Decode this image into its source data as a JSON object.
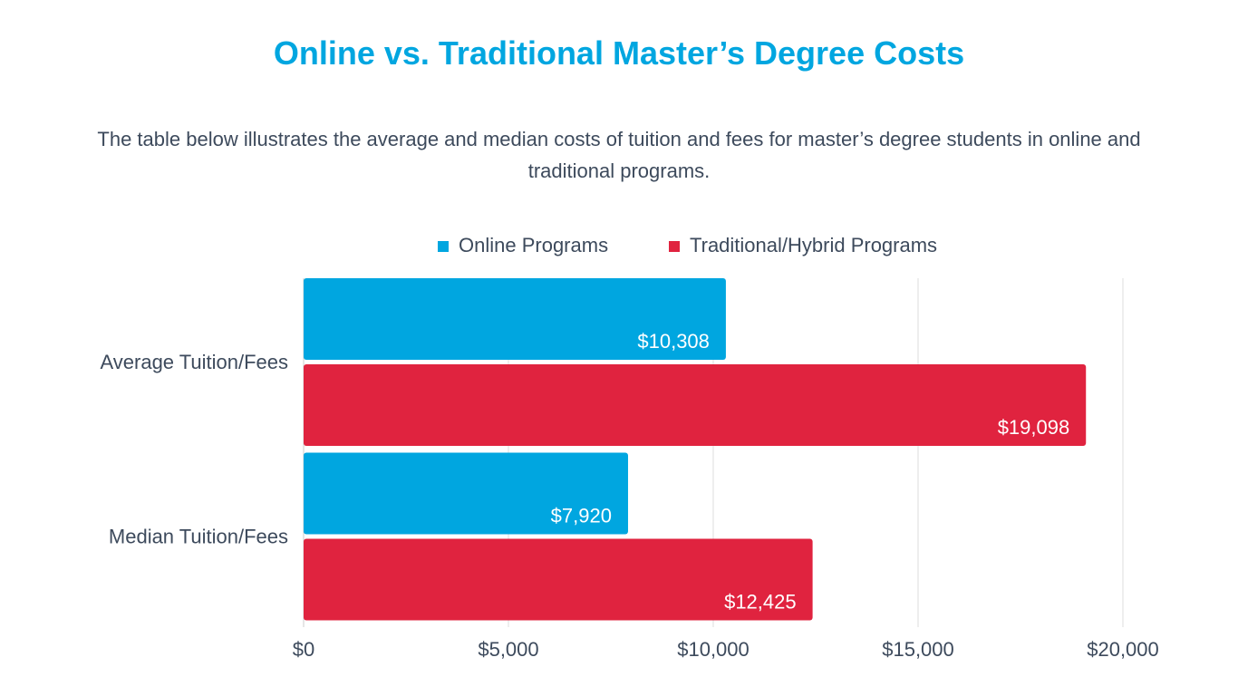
{
  "chart_data": {
    "type": "bar",
    "orientation": "horizontal",
    "title": "Online vs. Traditional Master’s Degree Costs",
    "subtitle": "The table below illustrates the average and median costs of tuition and fees for master’s degree students in online and traditional programs.",
    "categories": [
      "Average Tuition/Fees",
      "Median Tuition/Fees"
    ],
    "series": [
      {
        "name": "Online Programs",
        "color": "#00a6e0",
        "values": [
          10308,
          7920
        ],
        "value_labels": [
          "$10,308",
          "$7,920"
        ]
      },
      {
        "name": "Traditional/Hybrid Programs",
        "color": "#e0233f",
        "values": [
          19098,
          12425
        ],
        "value_labels": [
          "$19,098",
          "$12,425"
        ]
      }
    ],
    "xlim": [
      0,
      20000
    ],
    "xticks": [
      {
        "value": 0,
        "label": "$0"
      },
      {
        "value": 5000,
        "label": "$5,000"
      },
      {
        "value": 10000,
        "label": "$10,000"
      },
      {
        "value": 15000,
        "label": "$15,000"
      },
      {
        "value": 20000,
        "label": "$20,000"
      }
    ],
    "grid": true,
    "legend": "top"
  }
}
